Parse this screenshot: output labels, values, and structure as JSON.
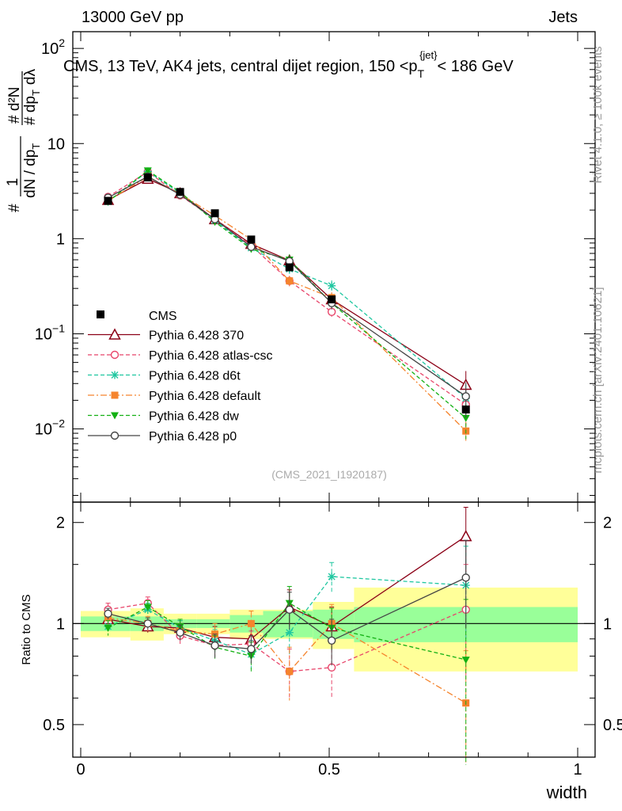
{
  "header": {
    "left": "13000 GeV pp",
    "right": "Jets"
  },
  "side_labels": {
    "rivet": "Rivet 4.1.0, ≥ 100k events",
    "mcplots": "mcplots.cern.ch [arXiv:2401.10621]"
  },
  "chart_data": {
    "type": "line",
    "title": "CMS, 13 TeV, AK4 jets, central dijet region, 150 <p_T^{jet}< 186 GeV",
    "title_parts": {
      "before": "CMS, 13 TeV, AK4 jets, central dijet region, 150 <p",
      "sub": "T",
      "sup": "{jet}",
      "after": "< 186 GeV"
    },
    "analysis_tag": "(CMS_2021_I1920187)",
    "xlabel": "width",
    "ylabel_ratio": "Ratio to CMS",
    "ylabel_main": {
      "frac1_num": "#",
      "frac1_den": "dN / dp",
      "frac1_den_sub": "T",
      "frac1_num2": "1",
      "frac2_num": "# d²N",
      "frac2_den": "# dp",
      "frac2_den_sub": "T",
      "frac2_dlam": "dλ"
    },
    "xlim": [
      0,
      1
    ],
    "ylim_main": [
      0.0017,
      150
    ],
    "ylim_ratio": [
      0.4,
      2.3
    ],
    "x_ticks": [
      0,
      0.5,
      1
    ],
    "x_tick_labels": [
      "0",
      "0.5",
      "1"
    ],
    "y_ticks_main": [
      0.01,
      0.1,
      1,
      10,
      100
    ],
    "y_tick_labels_main": [
      {
        "base": "10",
        "exp": "−2"
      },
      {
        "base": "10",
        "exp": "−1"
      },
      {
        "base": "1",
        "exp": ""
      },
      {
        "base": "10",
        "exp": ""
      },
      {
        "base": "10",
        "exp": "2"
      }
    ],
    "y_ticks_ratio": [
      0.5,
      1,
      2
    ],
    "y_tick_labels_ratio": [
      "0.5",
      "1",
      "2"
    ],
    "bins": [
      {
        "lo": 0.0,
        "hi": 0.1
      },
      {
        "lo": 0.1,
        "hi": 0.167
      },
      {
        "lo": 0.167,
        "hi": 0.233
      },
      {
        "lo": 0.233,
        "hi": 0.3
      },
      {
        "lo": 0.3,
        "hi": 0.367
      },
      {
        "lo": 0.367,
        "hi": 0.467
      },
      {
        "lo": 0.467,
        "hi": 0.55
      },
      {
        "lo": 0.55,
        "hi": 1.0
      }
    ],
    "x": [
      0.055,
      0.135,
      0.2,
      0.27,
      0.343,
      0.42,
      0.505,
      0.775
    ],
    "data": {
      "name": "CMS",
      "values": [
        2.5,
        4.4,
        3.1,
        1.85,
        0.98,
        0.5,
        0.23,
        0.016
      ],
      "err_green": [
        0.05,
        0.05,
        0.03,
        0.03,
        0.06,
        0.09,
        0.1,
        0.12
      ],
      "err_yellow": [
        0.09,
        0.11,
        0.07,
        0.07,
        0.1,
        0.1,
        0.16,
        0.28
      ]
    },
    "series": [
      {
        "name": "Pythia 6.428 370",
        "color": "#8b0016",
        "dash": "",
        "marker": "triangle-open",
        "values": [
          2.55,
          4.25,
          3.0,
          1.6,
          0.88,
          0.59,
          0.23,
          0.029
        ],
        "ratio": [
          1.03,
          0.98,
          0.97,
          0.91,
          0.9,
          1.12,
          0.98,
          1.82
        ],
        "ratio_err": [
          0.04,
          0.04,
          0.05,
          0.07,
          0.08,
          0.14,
          0.14,
          0.4
        ]
      },
      {
        "name": "Pythia 6.428 atlas-csc",
        "color": "#e8456a",
        "dash": "5,3",
        "marker": "circle-open",
        "values": [
          2.75,
          5.05,
          2.85,
          1.6,
          0.85,
          0.36,
          0.17,
          0.018
        ],
        "ratio": [
          1.1,
          1.15,
          0.92,
          0.86,
          0.87,
          0.72,
          0.74,
          1.1
        ],
        "ratio_err": [
          0.05,
          0.05,
          0.05,
          0.07,
          0.08,
          0.12,
          0.14,
          0.4
        ]
      },
      {
        "name": "Pythia 6.428 d6t",
        "color": "#1fc7a0",
        "dash": "5,3",
        "marker": "star",
        "values": [
          2.45,
          5.1,
          3.0,
          1.55,
          0.8,
          0.48,
          0.32,
          0.021
        ],
        "ratio": [
          0.98,
          1.1,
          0.97,
          0.89,
          0.81,
          0.94,
          1.38,
          1.3
        ],
        "ratio_err": [
          0.04,
          0.05,
          0.05,
          0.07,
          0.08,
          0.14,
          0.14,
          0.4
        ]
      },
      {
        "name": "Pythia 6.428 default",
        "color": "#f5842d",
        "dash": "8,3,2,3",
        "marker": "square",
        "values": [
          2.5,
          4.5,
          2.95,
          1.75,
          0.98,
          0.36,
          0.24,
          0.0095
        ],
        "ratio": [
          1.04,
          1.0,
          0.95,
          0.93,
          1.0,
          0.72,
          1.0,
          0.58
        ],
        "ratio_err": [
          0.05,
          0.05,
          0.05,
          0.07,
          0.09,
          0.13,
          0.14,
          0.25
        ]
      },
      {
        "name": "Pythia 6.428 dw",
        "color": "#13b013",
        "dash": "5,3",
        "marker": "triangle-down",
        "values": [
          2.45,
          5.2,
          3.1,
          1.5,
          0.78,
          0.6,
          0.21,
          0.013
        ],
        "ratio": [
          0.97,
          1.12,
          0.98,
          0.85,
          0.8,
          1.15,
          0.97,
          0.78
        ],
        "ratio_err": [
          0.05,
          0.05,
          0.05,
          0.07,
          0.08,
          0.14,
          0.14,
          0.4
        ]
      },
      {
        "name": "Pythia 6.428 p0",
        "color": "#444444",
        "dash": "",
        "marker": "circle-open",
        "values": [
          2.7,
          4.5,
          2.9,
          1.6,
          0.82,
          0.58,
          0.21,
          0.022
        ],
        "ratio": [
          1.07,
          1.0,
          0.94,
          0.86,
          0.84,
          1.1,
          0.89,
          1.37
        ],
        "ratio_err": [
          0.04,
          0.04,
          0.05,
          0.07,
          0.08,
          0.14,
          0.14,
          0.4
        ]
      }
    ]
  }
}
